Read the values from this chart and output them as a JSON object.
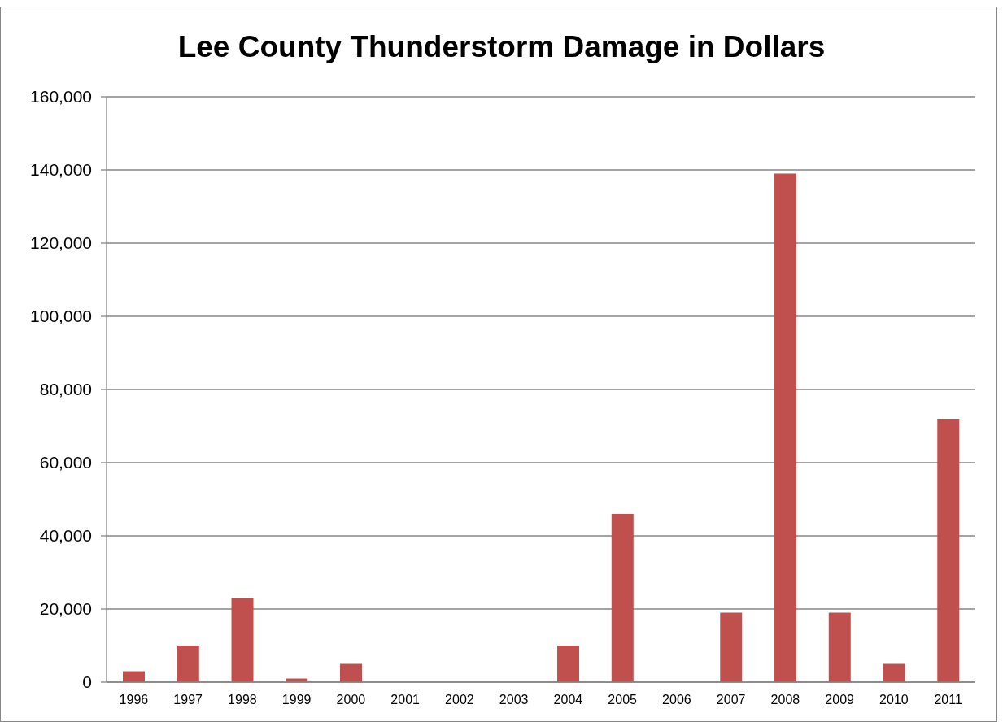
{
  "chart_data": {
    "type": "bar",
    "title": "Lee County Thunderstorm Damage in Dollars",
    "categories": [
      "1996",
      "1997",
      "1998",
      "1999",
      "2000",
      "2001",
      "2002",
      "2003",
      "2004",
      "2005",
      "2006",
      "2007",
      "2008",
      "2009",
      "2010",
      "2011"
    ],
    "values": [
      3000,
      10000,
      23000,
      1000,
      5000,
      0,
      0,
      0,
      10000,
      46000,
      0,
      19000,
      139000,
      19000,
      5000,
      72000
    ],
    "color": "#c0504d",
    "ylim": [
      0,
      160000
    ],
    "yticks": [
      0,
      {
        "value": 20000,
        "label": "20,000"
      },
      {
        "value": 40000,
        "label": "40,000"
      },
      {
        "value": 60000,
        "label": "60,000"
      },
      {
        "value": 80000,
        "label": "80,000"
      },
      {
        "value": 100000,
        "label": "100,000"
      },
      {
        "value": 120000,
        "label": "120,000"
      },
      {
        "value": 140000,
        "label": "140,000"
      },
      {
        "value": 160000,
        "label": "160,000"
      }
    ],
    "grid": "y"
  }
}
